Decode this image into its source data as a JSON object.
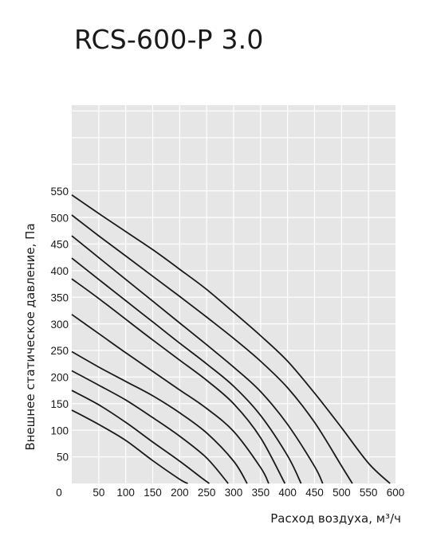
{
  "chart_data": {
    "type": "line",
    "title": "RCS-600-P 3.0",
    "xlabel": "Расход воздуха, м³/ч",
    "ylabel": "Внешнее статическое давление, Па",
    "xlim": [
      0,
      600
    ],
    "ylim": [
      0,
      550
    ],
    "x_ticks": [
      "0",
      "50",
      "100",
      "150",
      "200",
      "250",
      "300",
      "350",
      "400",
      "450",
      "500",
      "550",
      "600"
    ],
    "y_ticks": [
      "50",
      "100",
      "150",
      "200",
      "250",
      "300",
      "350",
      "400",
      "450",
      "500",
      "550"
    ],
    "grid": true,
    "background": "#e6e6e7",
    "line_color": "#1a1a1a",
    "series": [
      {
        "x": [
          0,
          50,
          100,
          150,
          200,
          215
        ],
        "y": [
          138,
          111,
          81,
          43,
          8,
          0
        ]
      },
      {
        "x": [
          0,
          50,
          100,
          150,
          200,
          240,
          255
        ],
        "y": [
          175,
          148,
          115,
          78,
          42,
          11,
          0
        ]
      },
      {
        "x": [
          0,
          50,
          100,
          150,
          200,
          250,
          290
        ],
        "y": [
          212,
          185,
          157,
          124,
          89,
          48,
          0
        ]
      },
      {
        "x": [
          0,
          50,
          100,
          150,
          200,
          250,
          300,
          325
        ],
        "y": [
          248,
          219,
          192,
          165,
          133,
          95,
          42,
          0
        ]
      },
      {
        "x": [
          0,
          50,
          100,
          150,
          200,
          250,
          300,
          350,
          365
        ],
        "y": [
          318,
          282,
          246,
          211,
          176,
          141,
          98,
          30,
          0
        ]
      },
      {
        "x": [
          0,
          50,
          100,
          150,
          200,
          250,
          300,
          350,
          395
        ],
        "y": [
          385,
          348,
          309,
          270,
          232,
          194,
          150,
          86,
          0
        ]
      },
      {
        "x": [
          0,
          50,
          100,
          150,
          200,
          250,
          300,
          350,
          400,
          425
        ],
        "y": [
          424,
          384,
          344,
          304,
          264,
          225,
          183,
          128,
          52,
          0
        ]
      },
      {
        "x": [
          0,
          50,
          100,
          150,
          200,
          250,
          300,
          350,
          400,
          450,
          465
        ],
        "y": [
          466,
          425,
          384,
          343,
          302,
          261,
          219,
          173,
          111,
          32,
          0
        ]
      },
      {
        "x": [
          0,
          50,
          100,
          150,
          200,
          250,
          300,
          350,
          400,
          450,
          500,
          520
        ],
        "y": [
          505,
          466,
          428,
          390,
          352,
          313,
          273,
          230,
          180,
          115,
          33,
          0
        ]
      },
      {
        "x": [
          0,
          50,
          100,
          150,
          200,
          250,
          300,
          350,
          400,
          450,
          500,
          550,
          590
        ],
        "y": [
          543,
          508,
          474,
          440,
          403,
          365,
          322,
          278,
          230,
          170,
          105,
          38,
          0
        ]
      }
    ]
  }
}
